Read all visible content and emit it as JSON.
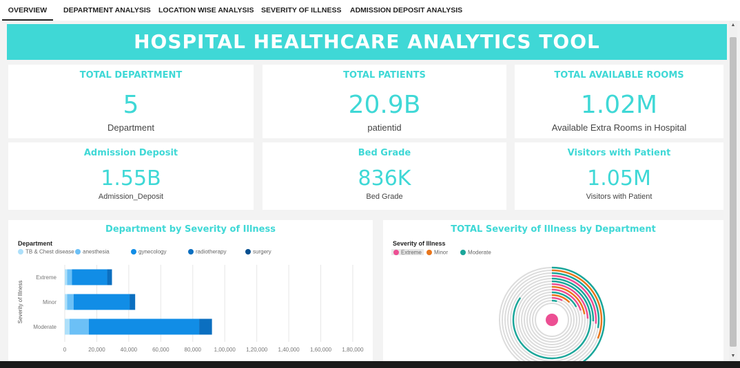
{
  "tabs": [
    {
      "label": "OVERVIEW",
      "active": true
    },
    {
      "label": "DEPARTMENT ANALYSIS",
      "active": false
    },
    {
      "label": "LOCATION WISE ANALYSIS",
      "active": false
    },
    {
      "label": "SEVERITY OF ILLNESS",
      "active": false
    },
    {
      "label": "ADMISSION DEPOSIT ANALYSIS",
      "active": false
    }
  ],
  "banner": {
    "title": "HOSPITAL  HEALTHCARE  ANALYTICS TOOL"
  },
  "kpis": {
    "total_department": {
      "title": "TOTAL DEPARTMENT",
      "value": "5",
      "sub": "Department"
    },
    "total_patients": {
      "title": "TOTAL PATIENTS",
      "value": "20.9B",
      "sub": "patientid"
    },
    "total_rooms": {
      "title": "TOTAL AVAILABLE ROOMS",
      "value": "1.02M",
      "sub": "Available Extra Rooms in Hospital"
    },
    "admission_deposit": {
      "title": "Admission Deposit",
      "value": "1.55B",
      "sub": "Admission_Deposit"
    },
    "bed_grade": {
      "title": "Bed Grade",
      "value": "836K",
      "sub": "Bed Grade"
    },
    "visitors": {
      "title": "Visitors with Patient",
      "value": "1.05M",
      "sub": "Visitors with Patient"
    }
  },
  "colors": {
    "accent": "#3fd8d6",
    "tb_chest": "#aee0fa",
    "anesthesia": "#6cc0f6",
    "gynecology": "#118de6",
    "radiotherapy": "#0b6fc0",
    "surgery": "#064f8f",
    "extreme": "#ec4f93",
    "minor": "#e8761c",
    "moderate": "#1aa69a"
  },
  "chart_data": [
    {
      "type": "bar",
      "orientation": "horizontal",
      "stacked": true,
      "title": "Department by Severity of Illness",
      "legend_title": "Department",
      "ylabel": "Severity of Illness",
      "categories": [
        "Extreme",
        "Minor",
        "Moderate"
      ],
      "series": [
        {
          "name": "TB & Chest disease",
          "color": "#aee0fa",
          "values": [
            1500,
            1500,
            3000
          ]
        },
        {
          "name": "anesthesia",
          "color": "#6cc0f6",
          "values": [
            3000,
            4000,
            12000
          ]
        },
        {
          "name": "gynecology",
          "color": "#118de6",
          "values": [
            22000,
            35000,
            69000
          ]
        },
        {
          "name": "radiotherapy",
          "color": "#0b6fc0",
          "values": [
            3000,
            3500,
            8000
          ]
        },
        {
          "name": "surgery",
          "color": "#064f8f",
          "values": [
            0,
            0,
            0
          ]
        }
      ],
      "xticks": [
        "0",
        "20,000",
        "40,000",
        "60,000",
        "80,000",
        "1,00,000",
        "1,20,000",
        "1,40,000",
        "1,60,000",
        "1,80,000"
      ],
      "xlim": [
        0,
        180000
      ],
      "grid": true,
      "legend_position": "top-left"
    },
    {
      "type": "radial-bar",
      "title": "TOTAL Severity of Illness by Department",
      "legend_title": "Severity of Illness",
      "legend": [
        {
          "name": "Extreme",
          "color": "#ec4f93"
        },
        {
          "name": "Minor",
          "color": "#e8761c"
        },
        {
          "name": "Moderate",
          "color": "#1aa69a"
        }
      ],
      "legend_position": "top-left"
    }
  ]
}
